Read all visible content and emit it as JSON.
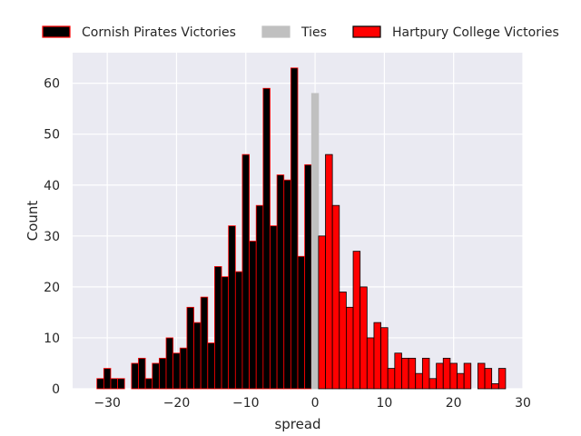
{
  "chart_data": {
    "type": "bar",
    "xlabel": "spread",
    "ylabel": "Count",
    "xlim": [
      -35,
      30
    ],
    "ylim": [
      0,
      66
    ],
    "xticks": [
      "−30",
      "−20",
      "−10",
      "0",
      "10",
      "20",
      "30"
    ],
    "yticks": [
      "0",
      "10",
      "20",
      "30",
      "40",
      "50",
      "60"
    ],
    "grid": true,
    "legend_position": "top",
    "bin_width": 1,
    "series": [
      {
        "name": "Cornish Pirates Victories",
        "color": "#000000",
        "edge_color": "#ff0000",
        "x": [
          -31,
          -30,
          -29,
          -28,
          -26,
          -25,
          -24,
          -23,
          -22,
          -21,
          -20,
          -19,
          -18,
          -17,
          -16,
          -15,
          -14,
          -13,
          -12,
          -11,
          -10,
          -9,
          -8,
          -7,
          -6,
          -5,
          -4,
          -3,
          -2,
          -1
        ],
        "values": [
          2,
          4,
          2,
          2,
          5,
          6,
          2,
          5,
          6,
          10,
          7,
          8,
          16,
          13,
          18,
          9,
          24,
          22,
          32,
          23,
          46,
          29,
          36,
          59,
          32,
          42,
          41,
          63,
          26,
          44
        ]
      },
      {
        "name": "Ties",
        "color": "#c0c0c0",
        "edge_color": "#c0c0c0",
        "x": [
          0
        ],
        "values": [
          58
        ]
      },
      {
        "name": "Hartpury College Victories",
        "color": "#ff0000",
        "edge_color": "#000000",
        "x": [
          1,
          2,
          3,
          4,
          5,
          6,
          7,
          8,
          9,
          10,
          11,
          12,
          13,
          14,
          15,
          16,
          17,
          18,
          19,
          20,
          21,
          22,
          24,
          25,
          26,
          27
        ],
        "values": [
          30,
          46,
          36,
          19,
          16,
          27,
          20,
          10,
          13,
          12,
          4,
          7,
          6,
          6,
          3,
          6,
          2,
          5,
          6,
          5,
          3,
          5,
          5,
          4,
          1,
          4
        ]
      }
    ]
  }
}
